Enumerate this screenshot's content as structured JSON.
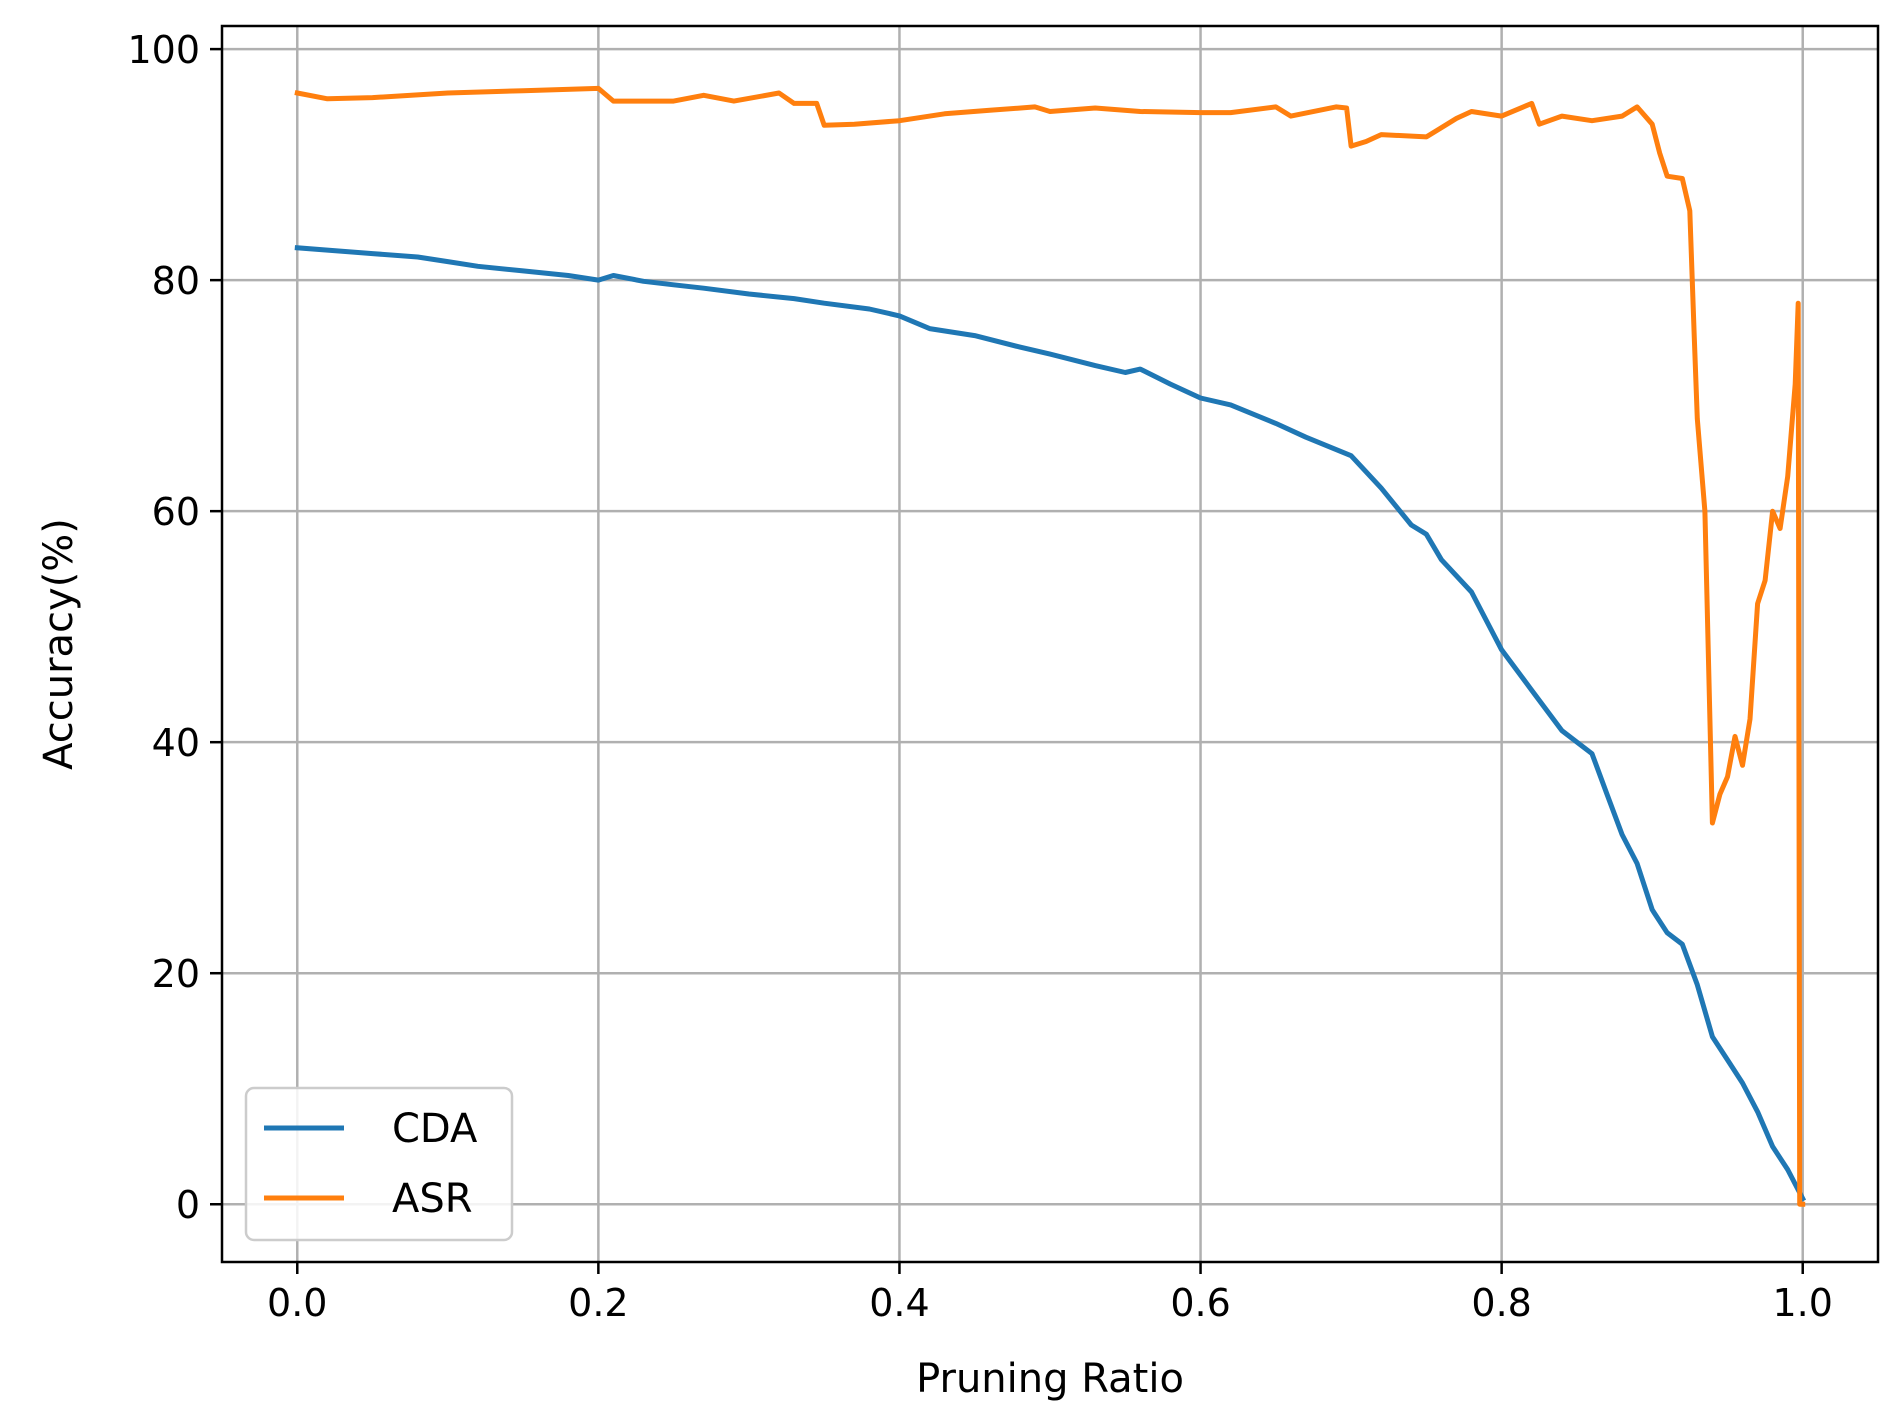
{
  "chart_data": {
    "type": "line",
    "xlabel": "Pruning Ratio",
    "ylabel": "Accuracy(%)",
    "xlim": [
      -0.05,
      1.05
    ],
    "ylim": [
      -5,
      102
    ],
    "x_ticks": [
      "0.0",
      "0.2",
      "0.4",
      "0.6",
      "0.8",
      "1.0"
    ],
    "y_ticks": [
      "0",
      "20",
      "40",
      "60",
      "80",
      "100"
    ],
    "grid": true,
    "legend_position": "lower-left",
    "series": [
      {
        "name": "CDA",
        "color": "#1f77b4",
        "points": [
          [
            0.0,
            82.8
          ],
          [
            0.02,
            82.6
          ],
          [
            0.05,
            82.3
          ],
          [
            0.08,
            82.0
          ],
          [
            0.1,
            81.6
          ],
          [
            0.12,
            81.2
          ],
          [
            0.15,
            80.8
          ],
          [
            0.18,
            80.4
          ],
          [
            0.2,
            80.0
          ],
          [
            0.21,
            80.4
          ],
          [
            0.23,
            79.9
          ],
          [
            0.25,
            79.6
          ],
          [
            0.27,
            79.3
          ],
          [
            0.3,
            78.8
          ],
          [
            0.33,
            78.4
          ],
          [
            0.35,
            78.0
          ],
          [
            0.38,
            77.5
          ],
          [
            0.4,
            76.9
          ],
          [
            0.42,
            75.8
          ],
          [
            0.45,
            75.2
          ],
          [
            0.48,
            74.2
          ],
          [
            0.5,
            73.6
          ],
          [
            0.53,
            72.6
          ],
          [
            0.55,
            72.0
          ],
          [
            0.56,
            72.3
          ],
          [
            0.58,
            71.0
          ],
          [
            0.6,
            69.8
          ],
          [
            0.62,
            69.2
          ],
          [
            0.65,
            67.6
          ],
          [
            0.67,
            66.4
          ],
          [
            0.7,
            64.8
          ],
          [
            0.72,
            62.0
          ],
          [
            0.74,
            58.8
          ],
          [
            0.75,
            58.0
          ],
          [
            0.76,
            55.8
          ],
          [
            0.78,
            53.0
          ],
          [
            0.8,
            48.0
          ],
          [
            0.82,
            44.5
          ],
          [
            0.84,
            41.0
          ],
          [
            0.86,
            39.0
          ],
          [
            0.87,
            35.5
          ],
          [
            0.88,
            32.0
          ],
          [
            0.89,
            29.5
          ],
          [
            0.9,
            25.5
          ],
          [
            0.91,
            23.5
          ],
          [
            0.92,
            22.5
          ],
          [
            0.93,
            19.0
          ],
          [
            0.94,
            14.5
          ],
          [
            0.95,
            12.5
          ],
          [
            0.96,
            10.5
          ],
          [
            0.97,
            8.0
          ],
          [
            0.98,
            5.0
          ],
          [
            0.99,
            3.0
          ],
          [
            1.0,
            0.5
          ]
        ]
      },
      {
        "name": "ASR",
        "color": "#ff7f0e",
        "points": [
          [
            0.0,
            96.2
          ],
          [
            0.02,
            95.7
          ],
          [
            0.05,
            95.8
          ],
          [
            0.1,
            96.2
          ],
          [
            0.15,
            96.4
          ],
          [
            0.2,
            96.6
          ],
          [
            0.21,
            95.5
          ],
          [
            0.25,
            95.5
          ],
          [
            0.27,
            96.0
          ],
          [
            0.29,
            95.5
          ],
          [
            0.32,
            96.2
          ],
          [
            0.33,
            95.3
          ],
          [
            0.345,
            95.3
          ],
          [
            0.35,
            93.4
          ],
          [
            0.37,
            93.5
          ],
          [
            0.4,
            93.8
          ],
          [
            0.43,
            94.4
          ],
          [
            0.46,
            94.7
          ],
          [
            0.49,
            95.0
          ],
          [
            0.5,
            94.6
          ],
          [
            0.53,
            94.9
          ],
          [
            0.56,
            94.6
          ],
          [
            0.6,
            94.5
          ],
          [
            0.62,
            94.5
          ],
          [
            0.65,
            95.0
          ],
          [
            0.66,
            94.2
          ],
          [
            0.69,
            95.0
          ],
          [
            0.697,
            94.9
          ],
          [
            0.7,
            91.6
          ],
          [
            0.71,
            92.0
          ],
          [
            0.72,
            92.6
          ],
          [
            0.75,
            92.4
          ],
          [
            0.77,
            94.0
          ],
          [
            0.78,
            94.6
          ],
          [
            0.8,
            94.2
          ],
          [
            0.82,
            95.3
          ],
          [
            0.825,
            93.5
          ],
          [
            0.84,
            94.2
          ],
          [
            0.86,
            93.8
          ],
          [
            0.88,
            94.2
          ],
          [
            0.89,
            95.0
          ],
          [
            0.9,
            93.5
          ],
          [
            0.905,
            91.0
          ],
          [
            0.91,
            89.0
          ],
          [
            0.92,
            88.8
          ],
          [
            0.925,
            86.0
          ],
          [
            0.928,
            75.0
          ],
          [
            0.93,
            68.0
          ],
          [
            0.935,
            60.0
          ],
          [
            0.94,
            33.0
          ],
          [
            0.945,
            35.5
          ],
          [
            0.95,
            37.0
          ],
          [
            0.955,
            40.5
          ],
          [
            0.96,
            38.0
          ],
          [
            0.965,
            42.0
          ],
          [
            0.97,
            52.0
          ],
          [
            0.975,
            54.0
          ],
          [
            0.98,
            60.0
          ],
          [
            0.985,
            58.5
          ],
          [
            0.99,
            63.0
          ],
          [
            0.995,
            71.0
          ],
          [
            0.997,
            78.0
          ],
          [
            0.998,
            0.0
          ],
          [
            1.0,
            0.0
          ]
        ]
      }
    ]
  }
}
